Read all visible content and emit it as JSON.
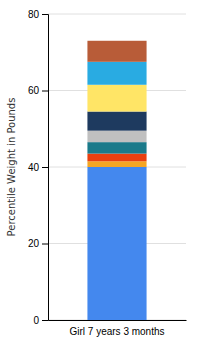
{
  "chart_data": {
    "type": "bar",
    "stacked": true,
    "ylabel": "Percentile Weight in Pounds",
    "categories": [
      "Girl 7 years 3 months"
    ],
    "series": [
      {
        "color": "#4488ee",
        "values": [
          40.0
        ]
      },
      {
        "color": "#f5a623",
        "values": [
          1.5
        ]
      },
      {
        "color": "#e84010",
        "values": [
          2.0
        ]
      },
      {
        "color": "#1a7a8a",
        "values": [
          3.0
        ]
      },
      {
        "color": "#c0c0c0",
        "values": [
          3.0
        ]
      },
      {
        "color": "#1e3a5f",
        "values": [
          5.0
        ]
      },
      {
        "color": "#ffe566",
        "values": [
          7.0
        ]
      },
      {
        "color": "#29abe2",
        "values": [
          6.0
        ]
      },
      {
        "color": "#b85c38",
        "values": [
          5.5
        ]
      }
    ],
    "ylim": [
      0,
      80
    ],
    "yticks": [
      0,
      20,
      40,
      60,
      80
    ],
    "grid": true
  }
}
